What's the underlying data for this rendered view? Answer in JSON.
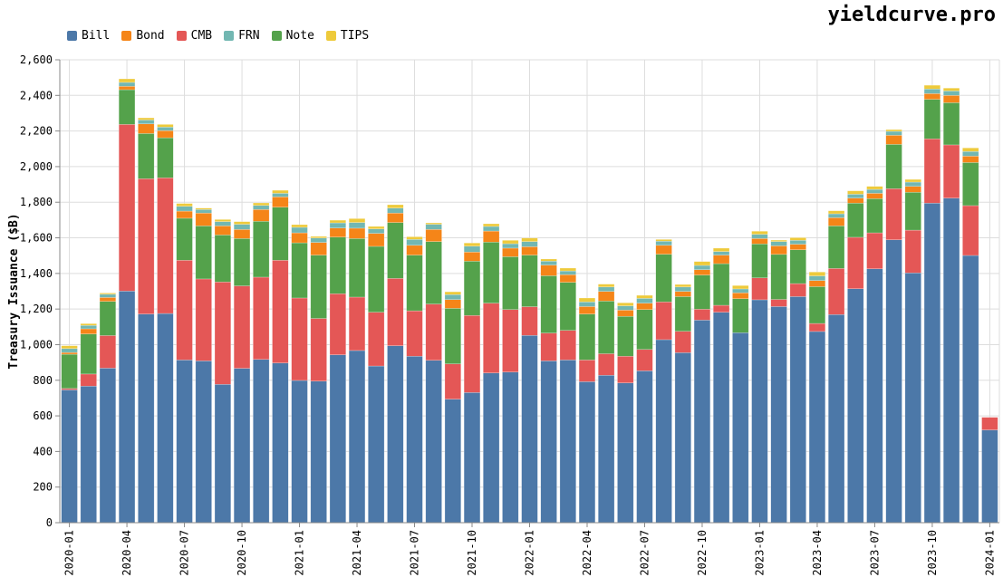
{
  "brand": "yieldcurve.pro",
  "chart_data": {
    "type": "bar",
    "stacked": true,
    "ylabel": "Treasury Issuance ($B)",
    "xlabel": "",
    "ylim": [
      0,
      2600
    ],
    "yticks": [
      0,
      200,
      400,
      600,
      800,
      1000,
      1200,
      1400,
      1600,
      1800,
      2000,
      2200,
      2400,
      2600
    ],
    "grid": true,
    "legend": "top-left",
    "xtick_labels": [
      "2020-01",
      "2020-04",
      "2020-07",
      "2020-10",
      "2021-01",
      "2021-04",
      "2021-07",
      "2021-10",
      "2022-01",
      "2022-04",
      "2022-07",
      "2022-10",
      "2023-01",
      "2023-04",
      "2023-07",
      "2023-10",
      "2024-01"
    ],
    "categories": [
      "2020-01",
      "2020-02",
      "2020-03",
      "2020-04",
      "2020-05",
      "2020-06",
      "2020-07",
      "2020-08",
      "2020-09",
      "2020-10",
      "2020-11",
      "2020-12",
      "2021-01",
      "2021-02",
      "2021-03",
      "2021-04",
      "2021-05",
      "2021-06",
      "2021-07",
      "2021-08",
      "2021-09",
      "2021-10",
      "2021-11",
      "2021-12",
      "2022-01",
      "2022-02",
      "2022-03",
      "2022-04",
      "2022-05",
      "2022-06",
      "2022-07",
      "2022-08",
      "2022-09",
      "2022-10",
      "2022-11",
      "2022-12",
      "2023-01",
      "2023-02",
      "2023-03",
      "2023-04",
      "2023-05",
      "2023-06",
      "2023-07",
      "2023-08",
      "2023-09",
      "2023-10",
      "2023-11",
      "2023-12",
      "2024-01"
    ],
    "series": [
      {
        "name": "Bill",
        "color": "#4c78a8",
        "values": [
          746,
          767,
          868,
          1301,
          1172,
          1175,
          914,
          909,
          777,
          867,
          917,
          897,
          799,
          795,
          943,
          967,
          880,
          994,
          935,
          912,
          694,
          731,
          841,
          846,
          1052,
          909,
          914,
          792,
          828,
          785,
          853,
          1028,
          955,
          1138,
          1182,
          1067,
          1252,
          1214,
          1270,
          1074,
          1169,
          1314,
          1426,
          1589,
          1403,
          1795,
          1823,
          1501,
          521
        ]
      },
      {
        "name": "CMB",
        "color": "#e45756",
        "values": [
          8,
          68,
          183,
          936,
          760,
          762,
          560,
          460,
          575,
          463,
          462,
          577,
          463,
          352,
          343,
          300,
          302,
          378,
          255,
          316,
          198,
          433,
          392,
          351,
          161,
          156,
          166,
          122,
          121,
          150,
          120,
          212,
          120,
          61,
          39,
          0,
          123,
          40,
          73,
          45,
          259,
          289,
          202,
          287,
          240,
          361,
          299,
          280,
          71
        ]
      },
      {
        "name": "Note",
        "color": "#54a24b",
        "values": [
          192,
          225,
          192,
          195,
          254,
          225,
          236,
          298,
          264,
          266,
          314,
          298,
          310,
          356,
          318,
          329,
          370,
          314,
          313,
          351,
          312,
          305,
          343,
          297,
          290,
          322,
          270,
          258,
          296,
          224,
          224,
          268,
          195,
          192,
          234,
          191,
          191,
          253,
          190,
          207,
          239,
          192,
          192,
          249,
          213,
          222,
          237,
          242,
          0
        ]
      },
      {
        "name": "Bond",
        "color": "#f58518",
        "values": [
          10,
          29,
          22,
          19,
          54,
          40,
          40,
          72,
          51,
          51,
          66,
          58,
          56,
          71,
          51,
          58,
          73,
          53,
          55,
          68,
          49,
          51,
          62,
          48,
          47,
          60,
          43,
          42,
          54,
          35,
          36,
          50,
          29,
          30,
          48,
          33,
          30,
          48,
          31,
          34,
          46,
          28,
          30,
          51,
          33,
          32,
          41,
          36,
          0
        ]
      },
      {
        "name": "FRN",
        "color": "#72b7b2",
        "values": [
          22,
          19,
          18,
          22,
          22,
          20,
          27,
          20,
          24,
          29,
          23,
          20,
          31,
          25,
          29,
          32,
          25,
          28,
          33,
          29,
          28,
          33,
          26,
          25,
          29,
          22,
          21,
          26,
          25,
          24,
          27,
          23,
          25,
          24,
          20,
          22,
          24,
          24,
          22,
          26,
          22,
          22,
          22,
          22,
          24,
          26,
          25,
          26,
          0
        ]
      },
      {
        "name": "TIPS",
        "color": "#eeca3b",
        "values": [
          16,
          10,
          7,
          20,
          12,
          15,
          16,
          8,
          12,
          15,
          14,
          17,
          15,
          9,
          15,
          22,
          14,
          19,
          15,
          8,
          16,
          18,
          15,
          19,
          20,
          12,
          16,
          22,
          16,
          17,
          17,
          10,
          14,
          22,
          19,
          19,
          17,
          8,
          15,
          22,
          17,
          19,
          17,
          10,
          15,
          21,
          16,
          20,
          0
        ]
      }
    ],
    "legend_order": [
      "Bill",
      "Bond",
      "CMB",
      "FRN",
      "Note",
      "TIPS"
    ]
  }
}
